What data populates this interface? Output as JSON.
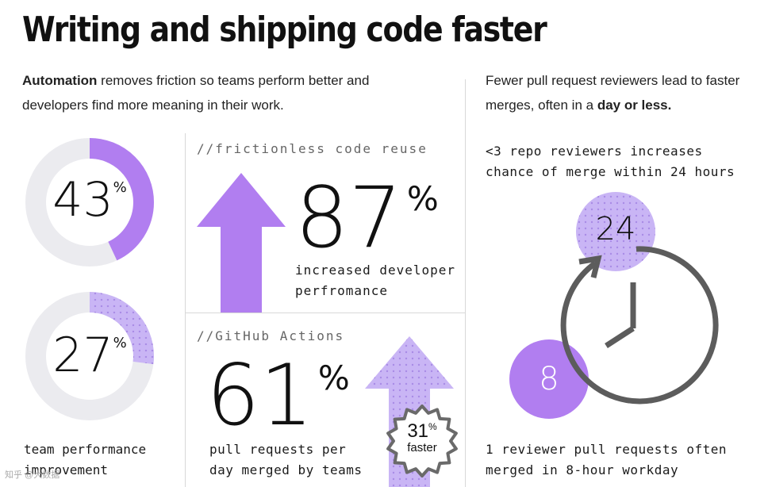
{
  "title": "Writing and shipping code faster",
  "intro_left": {
    "bold": "Automation",
    "rest": " removes friction so teams perform better and developers find more meaning in their work."
  },
  "intro_right": {
    "rest": "Fewer pull request reviewers lead to faster merges, often in a ",
    "bold": "day or less."
  },
  "donut_top": {
    "value": "43",
    "unit": "%",
    "fraction": 0.43,
    "color": "#b17ef0",
    "track_color": "#ebebef"
  },
  "donut_bottom": {
    "value": "27",
    "unit": "%",
    "fraction": 0.27,
    "color": "#c9b5f5",
    "track_color": "#ebebef"
  },
  "left_caption": {
    "line1": "team performance",
    "line2": "improvement"
  },
  "code_reuse": {
    "heading": "//frictionless code reuse",
    "value": "87",
    "unit": "%",
    "line1": "increased developer",
    "line2": "perfromance",
    "arrow_color": "#b17ef0"
  },
  "actions": {
    "heading": "//GitHub Actions",
    "value": "61",
    "unit": "%",
    "line1": "pull requests per",
    "line2": "day merged by teams",
    "badge_value": "31",
    "badge_unit": "%",
    "badge_label": "faster",
    "arrow_color": "#c9b5f5"
  },
  "reviewers": {
    "line1": "<3 repo reviewers increases",
    "line2": "chance of merge within 24 hours",
    "circle_24": "24",
    "circle_8": "8",
    "caption_line1": "1 reviewer pull requests often",
    "caption_line2": "merged in 8-hour workday"
  },
  "watermark": "知乎 @大数据"
}
